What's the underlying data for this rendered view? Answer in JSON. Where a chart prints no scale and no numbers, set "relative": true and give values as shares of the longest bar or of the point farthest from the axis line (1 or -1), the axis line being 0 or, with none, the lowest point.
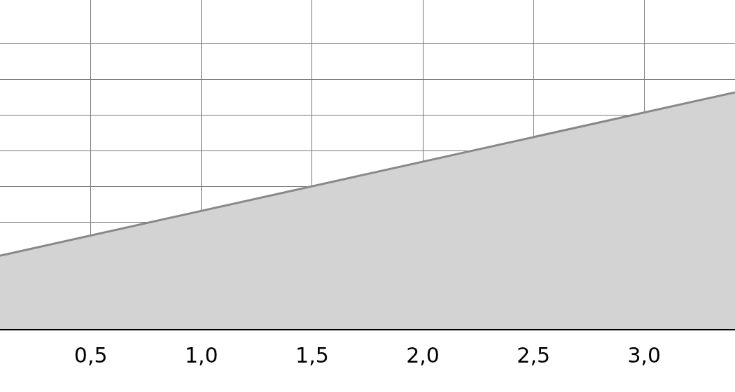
{
  "chart_data": {
    "type": "area",
    "relative": true,
    "x": [
      0.09,
      3.41
    ],
    "values": [
      0.31,
      1
    ],
    "color": "#d3d3d3",
    "xlim": [
      0.09,
      3.41
    ],
    "xticks": [
      {
        "value": 0.5,
        "label": "0,5"
      },
      {
        "value": 1.0,
        "label": "1,0"
      },
      {
        "value": 1.5,
        "label": "1,5"
      },
      {
        "value": 2.0,
        "label": "2,0"
      },
      {
        "value": 2.5,
        "label": "2,5"
      },
      {
        "value": 3.0,
        "label": "3,0"
      }
    ],
    "grid": true,
    "legend": false
  }
}
